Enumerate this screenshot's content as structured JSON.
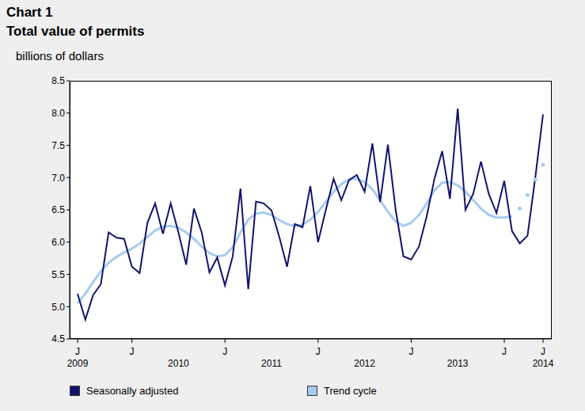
{
  "chart_data": {
    "type": "line",
    "title": "Chart 1",
    "subtitle": "Total value of permits",
    "y_label": "billions of dollars",
    "categories": [
      "J",
      null,
      null,
      null,
      null,
      null,
      null,
      "J",
      null,
      null,
      null,
      null,
      null,
      null,
      null,
      null,
      null,
      null,
      null,
      "J",
      null,
      null,
      null,
      null,
      null,
      null,
      null,
      null,
      null,
      null,
      null,
      "J",
      null,
      null,
      null,
      null,
      null,
      null,
      null,
      null,
      null,
      null,
      null,
      "J",
      null,
      null,
      null,
      null,
      null,
      null,
      null,
      null,
      null,
      null,
      null,
      "J",
      null,
      null,
      null,
      null,
      "J"
    ],
    "year_labels": [
      "2009",
      null,
      null,
      null,
      null,
      null,
      null,
      null,
      null,
      null,
      null,
      null,
      null,
      "2010",
      null,
      null,
      null,
      null,
      null,
      null,
      null,
      null,
      null,
      null,
      null,
      "2011",
      null,
      null,
      null,
      null,
      null,
      null,
      null,
      null,
      null,
      null,
      null,
      "2012",
      null,
      null,
      null,
      null,
      null,
      null,
      null,
      null,
      null,
      null,
      null,
      "2013",
      null,
      null,
      null,
      null,
      null,
      null,
      null,
      null,
      null,
      null,
      "2014"
    ],
    "ylim": [
      4.5,
      8.5
    ],
    "yticks": [
      4.5,
      {
        "value": 5,
        "label": "5.0"
      },
      5.5,
      {
        "value": 6,
        "label": "6.0"
      },
      6.5,
      {
        "value": 7,
        "label": "7.0"
      },
      7.5,
      {
        "value": 8,
        "label": "8.0"
      },
      8.5
    ],
    "grid": false,
    "legend": "bottom",
    "series": [
      {
        "name": "Seasonally adjusted",
        "color": "#13136b",
        "values": [
          5.2,
          4.8,
          5.18,
          5.35,
          6.15,
          6.07,
          6.05,
          5.62,
          5.52,
          6.3,
          6.6,
          6.13,
          6.6,
          6.15,
          5.65,
          6.52,
          6.15,
          5.53,
          5.76,
          5.33,
          5.78,
          6.83,
          5.27,
          6.63,
          6.6,
          6.49,
          6.08,
          5.62,
          6.28,
          6.23,
          6.87,
          6.0,
          6.5,
          6.98,
          6.65,
          6.96,
          7.04,
          6.78,
          7.53,
          6.62,
          7.51,
          6.5,
          5.78,
          5.73,
          5.93,
          6.4,
          6.98,
          7.41,
          6.67,
          8.07,
          6.5,
          6.75,
          7.25,
          6.75,
          6.45,
          6.95,
          6.17,
          5.98,
          6.1,
          7.0,
          7.98
        ]
      },
      {
        "name": "Trend cycle",
        "color": "#a6cbef",
        "values": [
          5.05,
          5.2,
          5.38,
          5.55,
          5.68,
          5.77,
          5.84,
          5.9,
          5.98,
          6.08,
          6.18,
          6.24,
          6.25,
          6.22,
          6.15,
          6.05,
          5.93,
          5.83,
          5.78,
          5.8,
          5.92,
          6.15,
          6.35,
          6.44,
          6.46,
          6.42,
          6.34,
          6.28,
          6.25,
          6.27,
          6.35,
          6.47,
          6.62,
          6.78,
          6.9,
          6.97,
          6.98,
          6.93,
          6.82,
          6.65,
          6.47,
          6.32,
          6.25,
          6.3,
          6.42,
          6.6,
          6.8,
          6.92,
          6.93,
          6.88,
          6.78,
          6.65,
          6.52,
          6.42,
          6.38,
          6.38,
          6.4,
          null,
          null,
          null,
          null
        ],
        "dots": [
          null,
          null,
          null,
          null,
          null,
          null,
          null,
          null,
          null,
          null,
          null,
          null,
          null,
          null,
          null,
          null,
          null,
          null,
          null,
          null,
          null,
          null,
          null,
          null,
          null,
          null,
          null,
          null,
          null,
          null,
          null,
          null,
          null,
          null,
          null,
          null,
          null,
          null,
          null,
          null,
          null,
          null,
          null,
          null,
          null,
          null,
          null,
          null,
          null,
          null,
          null,
          null,
          null,
          null,
          null,
          null,
          null,
          6.52,
          6.73,
          6.97,
          7.2
        ]
      }
    ]
  }
}
